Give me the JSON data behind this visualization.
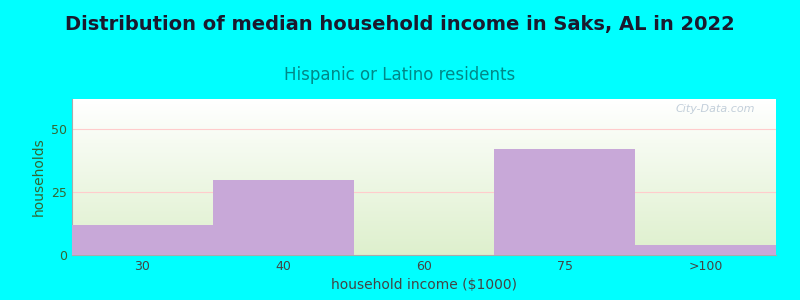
{
  "title": "Distribution of median household income in Saks, AL in 2022",
  "subtitle": "Hispanic or Latino residents",
  "xlabel": "household income ($1000)",
  "ylabel": "households",
  "categories": [
    "30",
    "40",
    "60",
    "75",
    ">100"
  ],
  "bar_edges": [
    0,
    1,
    2,
    3,
    4,
    5
  ],
  "values": [
    12,
    30,
    0,
    42,
    4
  ],
  "bar_color": "#C8A8D8",
  "bar_edge_color": "#C8A8D8",
  "background_color": "#00FFFF",
  "plot_bg_top": "#FFFFFF",
  "plot_bg_bottom": "#DDEFCC",
  "yticks": [
    0,
    25,
    50
  ],
  "ylim": [
    0,
    62
  ],
  "title_fontsize": 14,
  "subtitle_fontsize": 12,
  "title_color": "#1A1A2E",
  "subtitle_color": "#008888",
  "axis_label_fontsize": 10,
  "tick_fontsize": 9,
  "ylabel_color": "#336633",
  "ytick_color": "#336633",
  "xtick_color": "#444444",
  "xlabel_color": "#444444",
  "watermark": "City-Data.com",
  "watermark_color": "#AABBCC",
  "watermark_alpha": 0.7
}
